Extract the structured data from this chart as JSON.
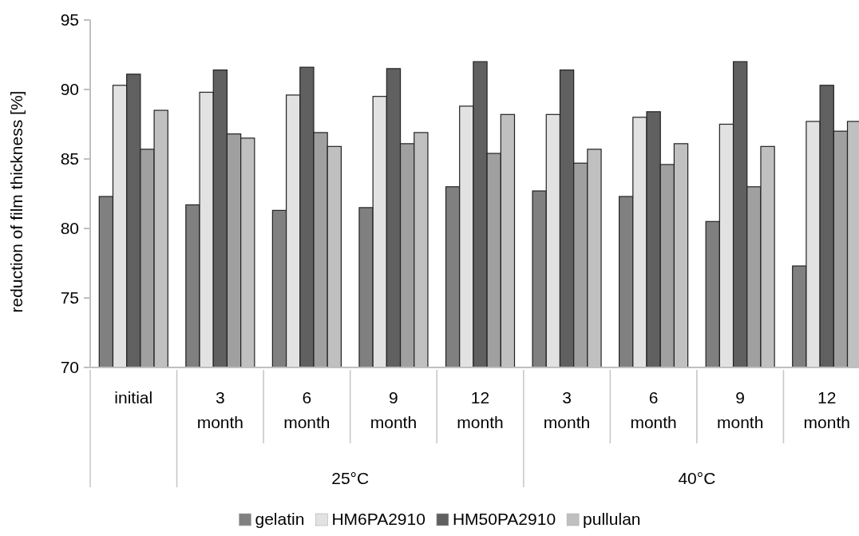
{
  "chart_data": {
    "type": "bar",
    "ylabel": "reduction of film thickness [%]",
    "categories": [
      "initial",
      "3 month",
      "6 month",
      "9 month",
      "12 month",
      "3 month",
      "6 month",
      "9 month",
      "12 month"
    ],
    "annotations": [
      "25°C",
      "40°C"
    ],
    "series": [
      {
        "name": "gelatin",
        "color": "#808080",
        "values": [
          82.3,
          81.7,
          81.3,
          81.5,
          83.0,
          82.7,
          82.3,
          80.5,
          77.3
        ]
      },
      {
        "name": "HM6PA2910",
        "color": "#e2e2e2",
        "values": [
          90.3,
          89.8,
          89.6,
          89.5,
          88.8,
          88.2,
          88.0,
          87.5,
          87.7
        ]
      },
      {
        "name": "HM50PA2910",
        "color": "#606060",
        "values": [
          91.1,
          91.4,
          91.6,
          91.5,
          92.0,
          91.4,
          88.4,
          92.0,
          90.3
        ]
      },
      {
        "color": "#a0a0a0",
        "values": [
          85.7,
          86.8,
          86.9,
          86.1,
          85.4,
          84.7,
          84.6,
          83.0,
          87.0
        ]
      },
      {
        "name": "pullulan",
        "color": "#c0c0c0",
        "values": [
          88.5,
          86.5,
          85.9,
          86.9,
          88.2,
          85.7,
          86.1,
          85.9,
          87.7
        ]
      }
    ],
    "ylim": [
      70,
      95
    ],
    "yticks": [
      70,
      75,
      80,
      85,
      90,
      95
    ],
    "grid": false,
    "legend": "bottom"
  }
}
